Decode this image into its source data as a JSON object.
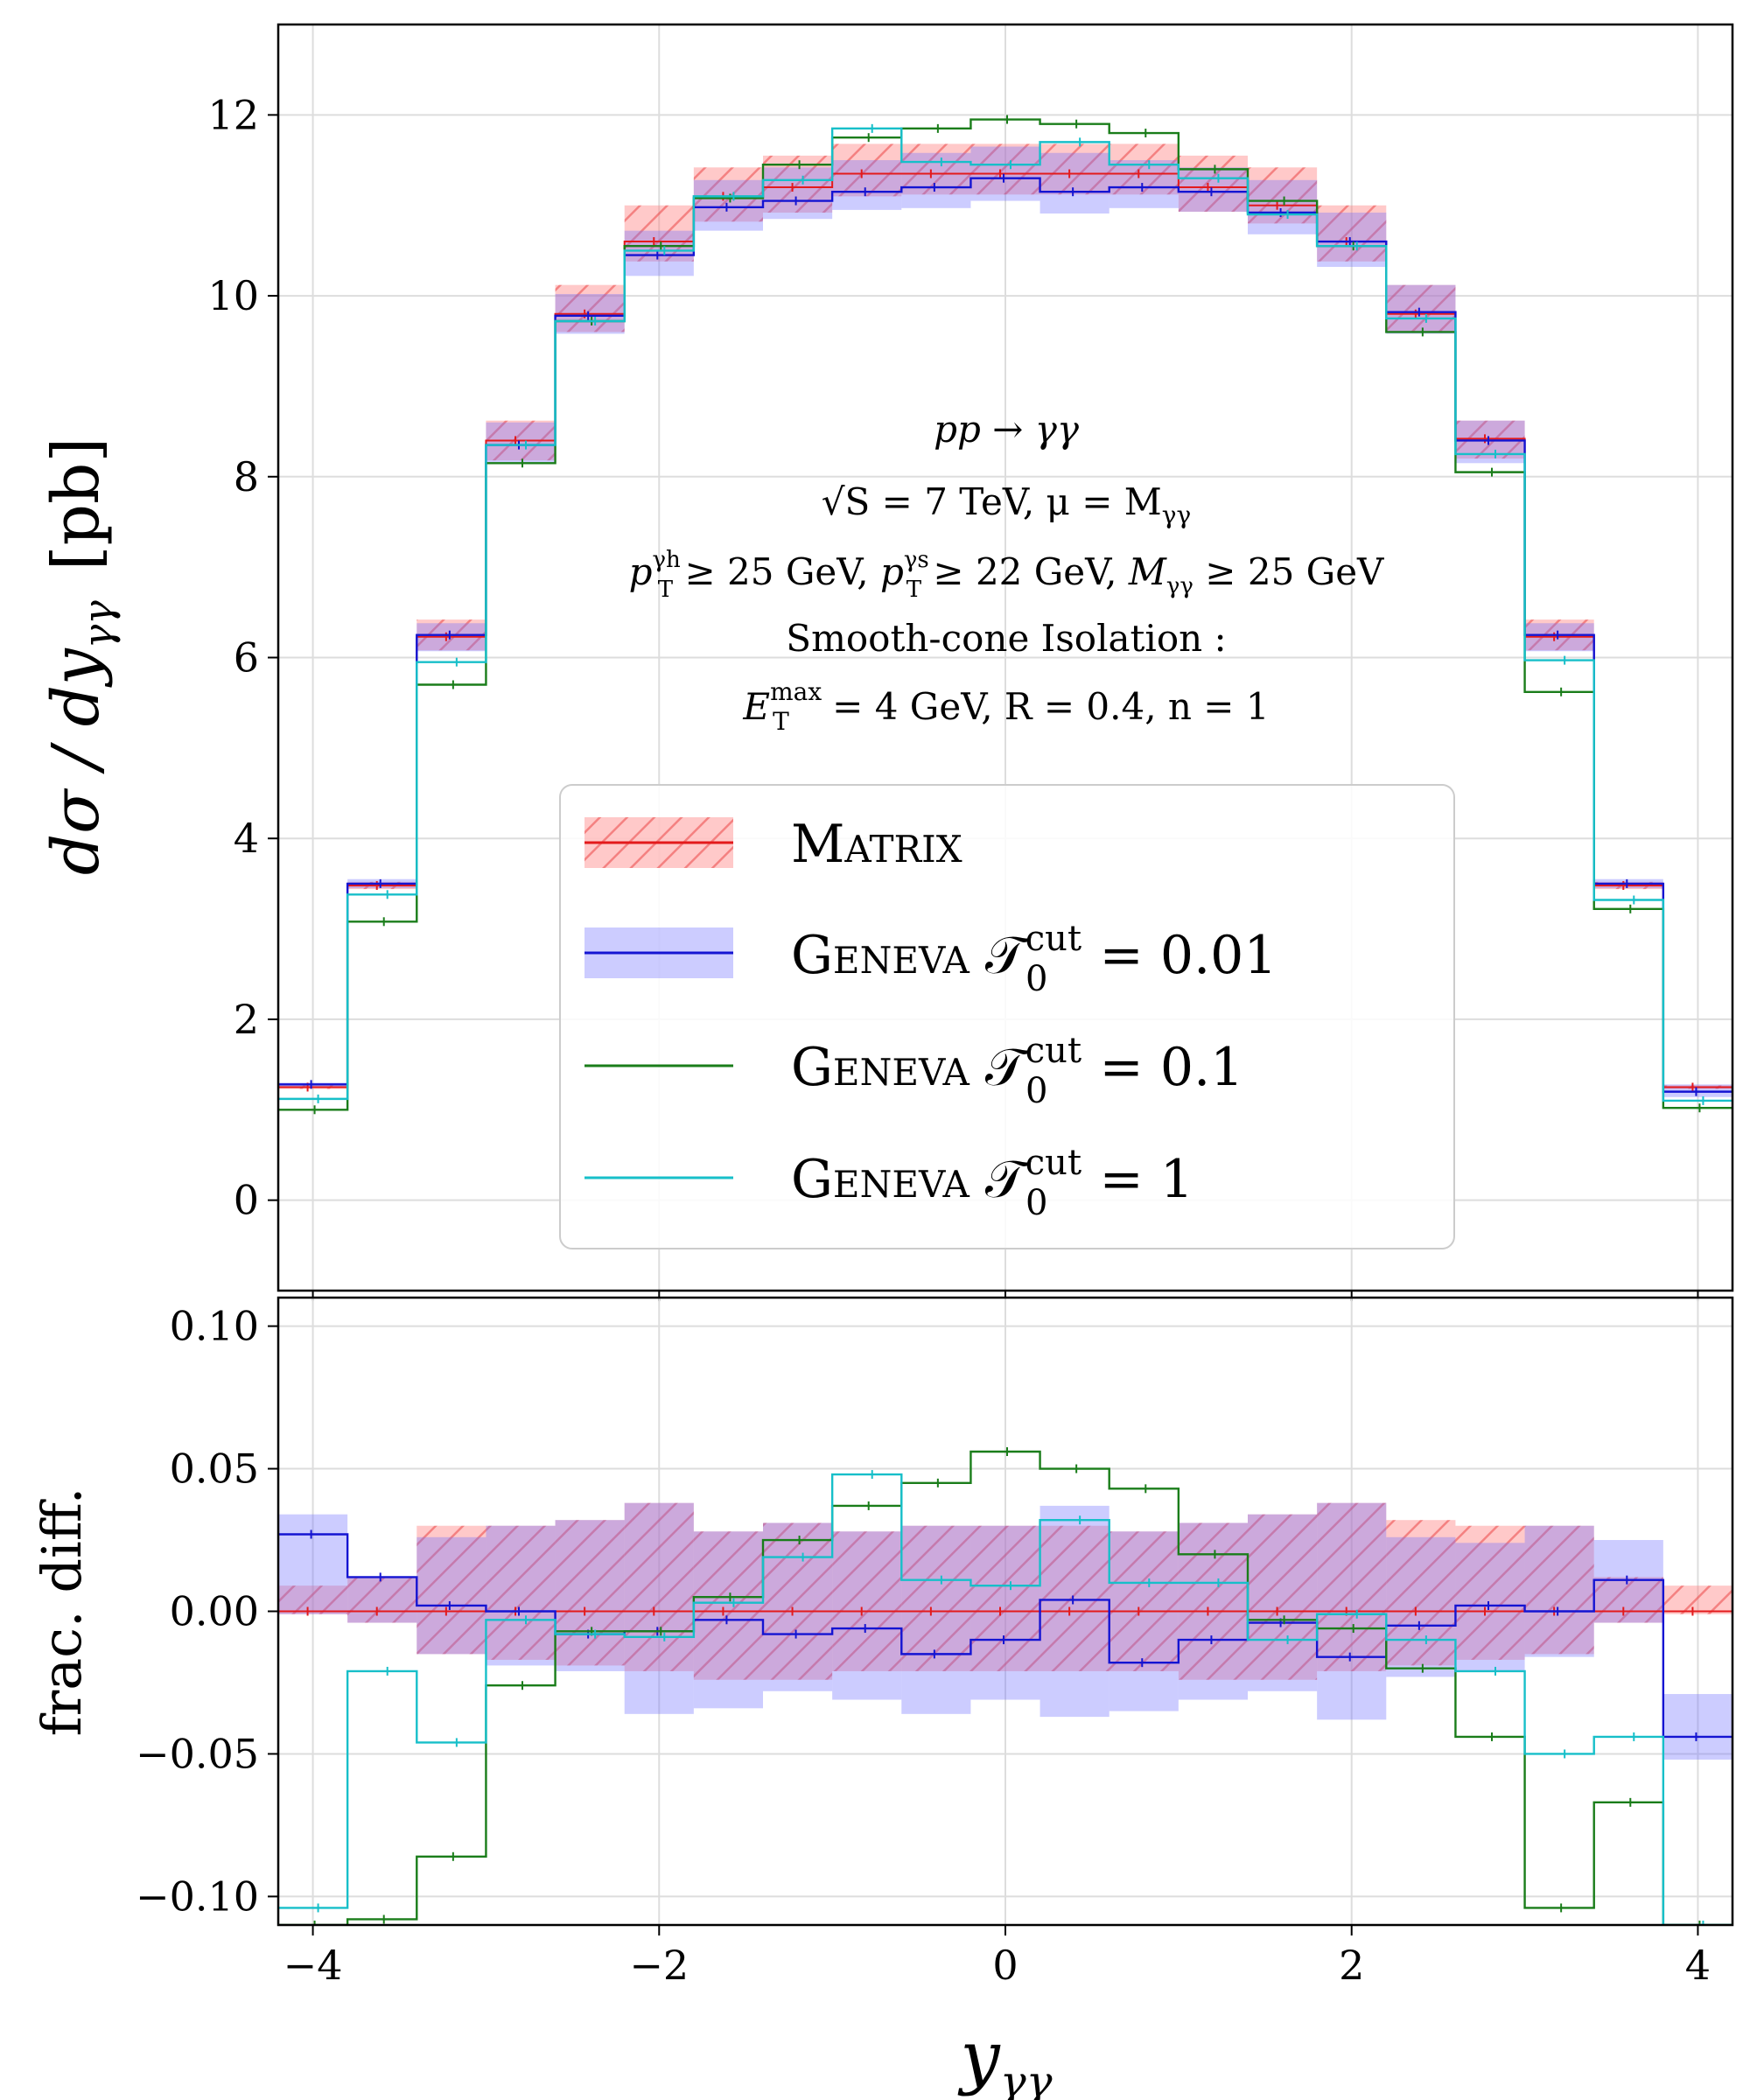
{
  "chart_data": [
    {
      "type": "step",
      "panel": "main",
      "ylabel": "dσ / dy_γγ  [pb]",
      "xlim": [
        -4.2,
        4.2
      ],
      "ylim": [
        -1.0,
        13.0
      ],
      "xticks": [
        -4,
        -2,
        0,
        2,
        4
      ],
      "yticks": [
        0,
        2,
        4,
        6,
        8,
        10,
        12
      ],
      "ytick_labels": [
        "0",
        "2",
        "4",
        "6",
        "8",
        "10",
        "12"
      ],
      "grid": true,
      "bin_edges": [
        -4.2,
        -3.8,
        -3.4,
        -3.0,
        -2.6,
        -2.2,
        -1.8,
        -1.4,
        -1.0,
        -0.6,
        -0.2,
        0.2,
        0.6,
        1.0,
        1.4,
        1.8,
        2.2,
        2.6,
        3.0,
        3.4,
        3.8,
        4.2
      ],
      "series": [
        {
          "name": "Matrix",
          "color": "#e31a1c",
          "style": "hatched-band",
          "values": [
            1.25,
            3.48,
            6.23,
            8.4,
            9.8,
            10.6,
            11.1,
            11.2,
            11.35,
            11.35,
            11.35,
            11.35,
            11.35,
            11.2,
            11.0,
            10.6,
            9.8,
            8.42,
            6.23,
            3.48,
            1.25
          ],
          "band_lo": [
            1.23,
            3.44,
            6.08,
            8.18,
            9.6,
            10.38,
            10.82,
            10.92,
            11.1,
            11.12,
            11.12,
            11.12,
            11.12,
            10.93,
            10.8,
            10.38,
            9.6,
            8.2,
            6.08,
            3.44,
            1.23
          ],
          "band_hi": [
            1.27,
            3.52,
            6.42,
            8.62,
            10.12,
            11.0,
            11.42,
            11.55,
            11.68,
            11.68,
            11.68,
            11.68,
            11.68,
            11.55,
            11.42,
            11.0,
            10.12,
            8.62,
            6.42,
            3.52,
            1.27
          ]
        },
        {
          "name": "Geneva 𝒯₀^cut = 0.01",
          "color": "#1414d2",
          "style": "solid-band",
          "values": [
            1.28,
            3.5,
            6.25,
            8.35,
            9.78,
            10.45,
            10.98,
            11.05,
            11.15,
            11.2,
            11.3,
            11.15,
            11.2,
            11.15,
            10.92,
            10.6,
            9.82,
            8.4,
            6.25,
            3.5,
            1.2
          ],
          "band_lo": [
            1.24,
            3.45,
            6.07,
            8.15,
            9.58,
            10.22,
            10.72,
            10.85,
            10.95,
            10.97,
            11.05,
            10.91,
            10.97,
            10.93,
            10.68,
            10.32,
            9.58,
            8.15,
            6.07,
            3.45,
            1.14
          ],
          "band_hi": [
            1.3,
            3.55,
            6.38,
            8.6,
            10.02,
            10.72,
            11.28,
            11.42,
            11.5,
            11.58,
            11.65,
            11.58,
            11.5,
            11.42,
            11.28,
            10.92,
            10.12,
            8.62,
            6.38,
            3.55,
            1.28
          ]
        },
        {
          "name": "Geneva 𝒯₀^cut = 0.1",
          "color": "#1a7d1a",
          "style": "line",
          "values": [
            1.0,
            3.08,
            5.7,
            8.15,
            9.72,
            10.55,
            11.08,
            11.45,
            11.75,
            11.85,
            11.95,
            11.9,
            11.8,
            11.4,
            11.05,
            10.55,
            9.6,
            8.05,
            5.62,
            3.22,
            1.02
          ]
        },
        {
          "name": "Geneva 𝒯₀^cut = 1",
          "color": "#17bfc9",
          "style": "line",
          "values": [
            1.12,
            3.38,
            5.95,
            8.35,
            9.72,
            10.5,
            11.1,
            11.28,
            11.85,
            11.48,
            11.45,
            11.7,
            11.45,
            11.3,
            10.9,
            10.55,
            9.75,
            8.25,
            5.97,
            3.32,
            1.1
          ]
        }
      ]
    },
    {
      "type": "step",
      "panel": "ratio",
      "xlabel": "y_γγ",
      "ylabel": "frac. diff.",
      "xlim": [
        -4.2,
        4.2
      ],
      "ylim": [
        -0.11,
        0.11
      ],
      "xticks": [
        -4,
        -2,
        0,
        2,
        4
      ],
      "xtick_labels": [
        "−4",
        "−2",
        "0",
        "2",
        "4"
      ],
      "yticks": [
        -0.1,
        -0.05,
        0.0,
        0.05,
        0.1
      ],
      "ytick_labels": [
        "−0.10",
        "−0.05",
        "0.00",
        "0.05",
        "0.10"
      ],
      "grid": true,
      "bin_edges": [
        -4.2,
        -3.8,
        -3.4,
        -3.0,
        -2.6,
        -2.2,
        -1.8,
        -1.4,
        -1.0,
        -0.6,
        -0.2,
        0.2,
        0.6,
        1.0,
        1.4,
        1.8,
        2.2,
        2.6,
        3.0,
        3.4,
        3.8,
        4.2
      ],
      "series": [
        {
          "name": "Matrix",
          "color": "#e31a1c",
          "style": "hatched-band",
          "values": [
            0,
            0,
            0,
            0,
            0,
            0,
            0,
            0,
            0,
            0,
            0,
            0,
            0,
            0,
            0,
            0,
            0,
            0,
            0,
            0,
            0
          ],
          "band_lo": [
            -0.001,
            -0.004,
            -0.015,
            -0.017,
            -0.019,
            -0.021,
            -0.024,
            -0.024,
            -0.021,
            -0.021,
            -0.021,
            -0.021,
            -0.021,
            -0.024,
            -0.024,
            -0.021,
            -0.019,
            -0.017,
            -0.015,
            -0.004,
            -0.001
          ],
          "band_hi": [
            0.009,
            0.012,
            0.03,
            0.03,
            0.032,
            0.038,
            0.028,
            0.031,
            0.028,
            0.03,
            0.03,
            0.03,
            0.028,
            0.031,
            0.034,
            0.038,
            0.032,
            0.03,
            0.03,
            0.012,
            0.009
          ]
        },
        {
          "name": "Geneva 𝒯₀^cut = 0.01",
          "color": "#1414d2",
          "style": "solid-band",
          "values": [
            0.027,
            0.012,
            0.002,
            0.0,
            -0.008,
            -0.007,
            -0.003,
            -0.008,
            -0.006,
            -0.015,
            -0.01,
            0.004,
            -0.018,
            -0.01,
            -0.004,
            -0.016,
            -0.005,
            0.002,
            0.0,
            0.011,
            -0.044
          ],
          "band_lo": [
            -0.001,
            -0.004,
            -0.015,
            -0.019,
            -0.021,
            -0.036,
            -0.034,
            -0.028,
            -0.031,
            -0.036,
            -0.031,
            -0.037,
            -0.035,
            -0.031,
            -0.028,
            -0.038,
            -0.023,
            -0.021,
            -0.016,
            -0.004,
            -0.052
          ],
          "band_hi": [
            0.034,
            0.012,
            0.026,
            0.03,
            0.032,
            0.038,
            0.028,
            0.031,
            0.028,
            0.03,
            0.03,
            0.037,
            0.028,
            0.031,
            0.034,
            0.038,
            0.026,
            0.024,
            0.03,
            0.025,
            -0.029
          ]
        },
        {
          "name": "Geneva 𝒯₀^cut = 0.1",
          "color": "#1a7d1a",
          "style": "line",
          "values": [
            -0.11,
            -0.108,
            -0.086,
            -0.026,
            -0.007,
            -0.007,
            0.005,
            0.025,
            0.037,
            0.045,
            0.056,
            0.05,
            0.043,
            0.02,
            -0.003,
            -0.006,
            -0.02,
            -0.044,
            -0.104,
            -0.067,
            -0.11
          ]
        },
        {
          "name": "Geneva 𝒯₀^cut = 1",
          "color": "#17bfc9",
          "style": "line",
          "values": [
            -0.104,
            -0.021,
            -0.046,
            -0.003,
            -0.008,
            -0.009,
            0.003,
            0.019,
            0.048,
            0.011,
            0.009,
            0.032,
            0.01,
            0.01,
            -0.01,
            -0.001,
            -0.01,
            -0.021,
            -0.05,
            -0.044,
            -0.11
          ]
        }
      ]
    }
  ],
  "annotation": {
    "process": "pp → γγ",
    "energy_sqrt": "√S",
    "energy_rest": " = 7 TeV,  μ = M",
    "energy_sub": "γγ",
    "cuts_line": "p_T^{γ_h} ≥ 25 GeV,  p_T^{γ_s} ≥ 22 GeV,  M_γγ ≥ 25 GeV",
    "cut1_p": "p",
    "cut1_sup": "γh",
    "cut1_sub": "T",
    "cut1_rest": " ≥ 25 GeV,  ",
    "cut2_p": "p",
    "cut2_sup": "γs",
    "cut2_sub": "T",
    "cut2_rest": " ≥ 22 GeV,  ",
    "cut3_m": "M",
    "cut3_sub": "γγ",
    "cut3_rest": " ≥ 25 GeV",
    "isolation_title": "Smooth-cone Isolation :",
    "iso_e": "E",
    "iso_sup": "max",
    "iso_sub": "T",
    "iso_rest": " = 4 GeV,   R = 0.4,  n = 1"
  },
  "legend": {
    "placement": "lower-center",
    "entries": [
      {
        "label": "Matrix",
        "value": ""
      },
      {
        "label": "Geneva",
        "value": " = 0.01"
      },
      {
        "label": "Geneva",
        "value": " = 0.1"
      },
      {
        "label": "Geneva",
        "value": " = 1"
      }
    ],
    "tau_symbol": "𝒯",
    "tau_sup": "cut",
    "tau_sub": "0"
  },
  "axis_titles": {
    "main_y_1": "dσ / dy",
    "main_y_sub": "γγ",
    "main_y_2": "[pb]",
    "ratio_y": "frac. diff.",
    "x_main": "y",
    "x_sub": "γγ"
  }
}
